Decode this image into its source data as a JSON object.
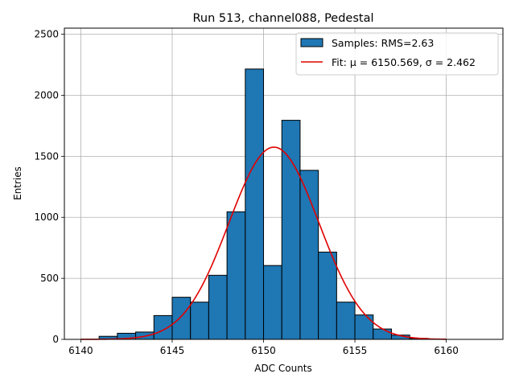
{
  "chart_data": {
    "type": "bar",
    "title": "Run 513, channel088, Pedestal",
    "xlabel": "ADC Counts",
    "ylabel": "Entries",
    "xlim": [
      6139.1,
      6163.1
    ],
    "ylim": [
      0,
      2550
    ],
    "xticks": [
      6140,
      6145,
      6150,
      6155,
      6160
    ],
    "yticks": [
      0,
      500,
      1000,
      1500,
      2000,
      2500
    ],
    "grid": true,
    "legend_position": "top-right",
    "histogram": {
      "name": "Samples: RMS=2.63",
      "color": "#1f77b4",
      "edgecolor": "#000000",
      "bins": [
        {
          "x0": 6141,
          "x1": 6142,
          "value": 25
        },
        {
          "x0": 6142,
          "x1": 6143,
          "value": 50
        },
        {
          "x0": 6143,
          "x1": 6144,
          "value": 60
        },
        {
          "x0": 6144,
          "x1": 6145,
          "value": 195
        },
        {
          "x0": 6145,
          "x1": 6146,
          "value": 345
        },
        {
          "x0": 6146,
          "x1": 6147,
          "value": 305
        },
        {
          "x0": 6147,
          "x1": 6148,
          "value": 525
        },
        {
          "x0": 6148,
          "x1": 6149,
          "value": 1045
        },
        {
          "x0": 6149,
          "x1": 6150,
          "value": 2215
        },
        {
          "x0": 6150,
          "x1": 6151,
          "value": 605
        },
        {
          "x0": 6151,
          "x1": 6152,
          "value": 1795
        },
        {
          "x0": 6152,
          "x1": 6153,
          "value": 1385
        },
        {
          "x0": 6153,
          "x1": 6154,
          "value": 715
        },
        {
          "x0": 6154,
          "x1": 6155,
          "value": 305
        },
        {
          "x0": 6155,
          "x1": 6156,
          "value": 200
        },
        {
          "x0": 6156,
          "x1": 6157,
          "value": 85
        },
        {
          "x0": 6157,
          "x1": 6158,
          "value": 35
        },
        {
          "x0": 6158,
          "x1": 6159,
          "value": 8
        }
      ]
    },
    "fit": {
      "name": "Fit: μ = 6150.569, σ = 2.462",
      "color": "#e00000",
      "mu": 6150.569,
      "sigma": 2.462,
      "amplitude": 1575,
      "x_range": [
        6140,
        6160
      ]
    }
  }
}
